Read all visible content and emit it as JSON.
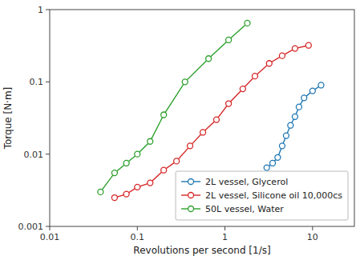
{
  "chart_data": {
    "type": "line",
    "xlabel": "Revolutions per second [1/s]",
    "ylabel": "Torque [N·m]",
    "log": true,
    "grid": false,
    "legend": "lower right",
    "marker": "circle",
    "xlim": [
      0.01,
      30
    ],
    "ylim": [
      0.001,
      1
    ],
    "xticks": [
      0.01,
      0.1,
      1,
      10
    ],
    "yticks": [
      0.001,
      0.01,
      0.1,
      1
    ],
    "series": [
      {
        "name": "2L vessel, Glycerol",
        "x": [
          3.0,
          3.5,
          4.0,
          4.5,
          5.0,
          5.6,
          6.3,
          7.0,
          8.0,
          10.0,
          12.5
        ],
        "values": [
          0.0065,
          0.0075,
          0.009,
          0.013,
          0.018,
          0.025,
          0.033,
          0.045,
          0.06,
          0.075,
          0.09
        ]
      },
      {
        "name": "2L vessel, Silicone oil 10,000cs",
        "x": [
          0.055,
          0.075,
          0.1,
          0.14,
          0.2,
          0.28,
          0.4,
          0.56,
          0.8,
          1.1,
          1.6,
          2.2,
          3.2,
          4.5,
          6.3,
          9.0
        ],
        "values": [
          0.0025,
          0.0028,
          0.0035,
          0.004,
          0.006,
          0.008,
          0.013,
          0.02,
          0.03,
          0.05,
          0.08,
          0.12,
          0.18,
          0.23,
          0.29,
          0.32
        ]
      },
      {
        "name": "50L vessel, Water",
        "x": [
          0.038,
          0.055,
          0.075,
          0.1,
          0.14,
          0.2,
          0.35,
          0.65,
          1.1,
          1.8
        ],
        "values": [
          0.003,
          0.0055,
          0.0075,
          0.01,
          0.015,
          0.035,
          0.1,
          0.21,
          0.38,
          0.65
        ]
      }
    ]
  }
}
